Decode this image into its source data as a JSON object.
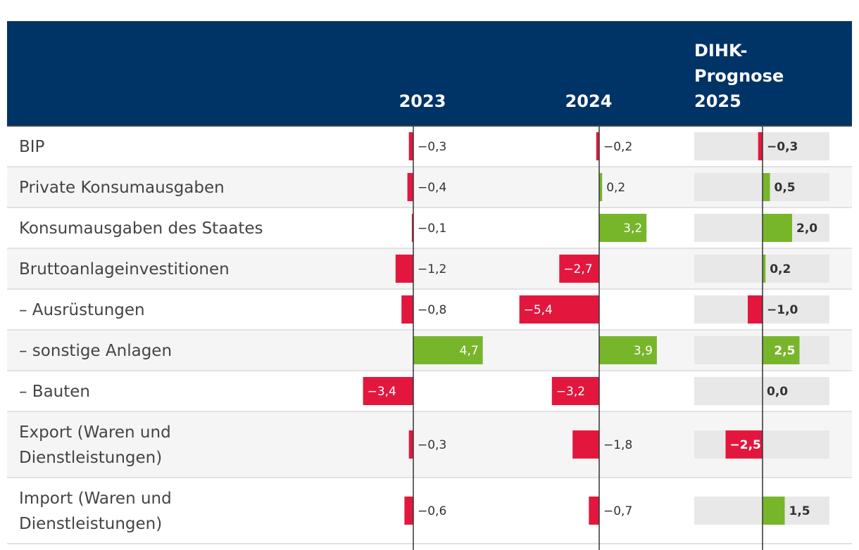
{
  "chart_data": {
    "type": "table",
    "columns": [
      {
        "header": [
          "2023"
        ],
        "values": [
          -0.3,
          -0.4,
          -0.1,
          -1.2,
          -0.8,
          4.7,
          -3.4,
          -0.3,
          -0.6
        ],
        "labels": [
          "−0,3",
          "−0,4",
          "−0,1",
          "−1,2",
          "−0,8",
          "4,7",
          "−3,4",
          "−0,3",
          "−0,6"
        ],
        "highlight": false
      },
      {
        "header": [
          "2024"
        ],
        "values": [
          -0.2,
          0.2,
          3.2,
          -2.7,
          -5.4,
          3.9,
          -3.2,
          -1.8,
          -0.7
        ],
        "labels": [
          "−0,2",
          "0,2",
          "3,2",
          "−2,7",
          "−5,4",
          "3,9",
          "−3,2",
          "−1,8",
          "−0,7"
        ],
        "highlight": false
      },
      {
        "header": [
          "DIHK-",
          "Prognose",
          "2025"
        ],
        "values": [
          -0.3,
          0.5,
          2.0,
          0.2,
          -1.0,
          2.5,
          0.0,
          -2.5,
          1.5
        ],
        "labels": [
          "−0,3",
          "0,5",
          "2,0",
          "0,2",
          "−1,0",
          "2,5",
          "0,0",
          "−2,5",
          "1,5"
        ],
        "highlight": true
      }
    ],
    "rows": [
      [
        "BIP"
      ],
      [
        "Private Konsumausgaben"
      ],
      [
        "Konsumausgaben des Staates"
      ],
      [
        "Bruttoanlageinvestitionen"
      ],
      [
        "– Ausrüstungen"
      ],
      [
        "– sonstige Anlagen"
      ],
      [
        "– Bauten"
      ],
      [
        "Export (Waren und",
        "Dienstleistungen)"
      ],
      [
        "Import (Waren und",
        "Dienstleistungen)"
      ]
    ],
    "colors": {
      "header_bg": "#003366",
      "negative": "#e3173e",
      "positive": "#77b62b",
      "band": "#e8e8e8",
      "row_alt": "#f5f5f5",
      "divider": "#e2e2e2",
      "axis": "#333333"
    }
  }
}
